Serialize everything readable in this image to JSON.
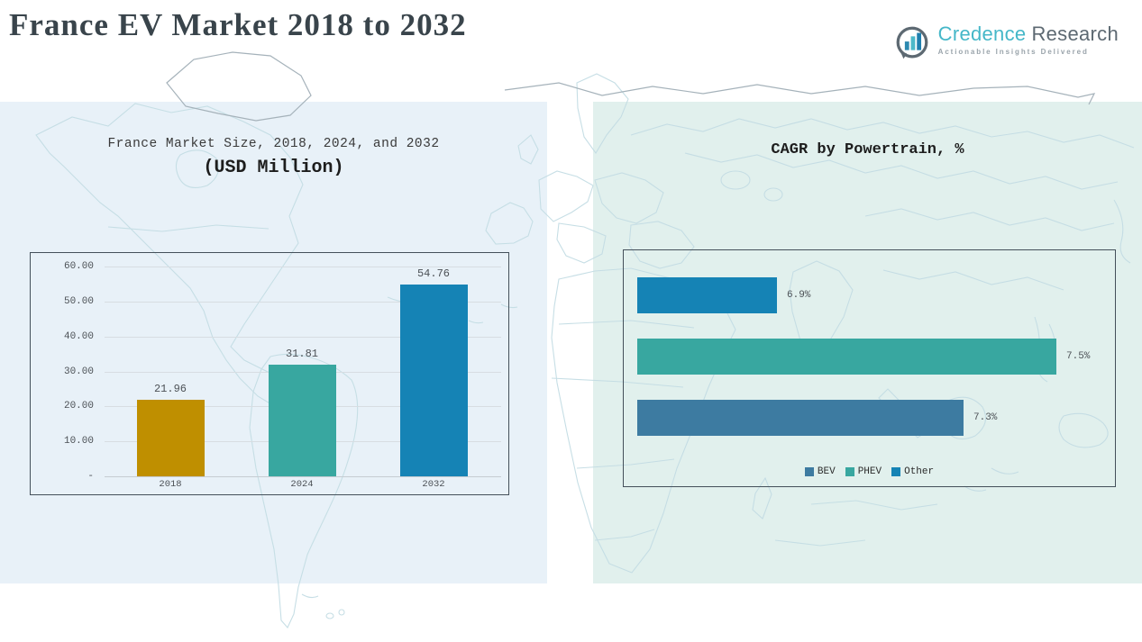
{
  "header": {
    "title": "France EV Market 2018 to 2032",
    "logo": {
      "brand_primary": "Credence",
      "brand_secondary": "Research",
      "tagline": "Actionable Insights Delivered",
      "icon": "bar-chart-bubble-icon",
      "brand_teal": "#45b7c8",
      "brand_slate": "#5d6972"
    }
  },
  "chart_data": [
    {
      "type": "bar",
      "title": "France Market Size, 2018, 2024, and 2032",
      "subtitle": "(USD Million)",
      "categories": [
        "2018",
        "2024",
        "2032"
      ],
      "values": [
        21.96,
        31.81,
        54.76
      ],
      "value_labels": [
        "21.96",
        "31.81",
        "54.76"
      ],
      "bar_colors": [
        "#bf8f00",
        "#38a7a0",
        "#1583b5"
      ],
      "xlabel": "",
      "ylabel": "",
      "ylim": [
        0,
        60
      ],
      "ytick_values": [
        60,
        50,
        40,
        30,
        20,
        10,
        0
      ],
      "ytick_labels": [
        "60.00",
        "50.00",
        "40.00",
        "30.00",
        "20.00",
        "10.00",
        "-"
      ],
      "grid": true,
      "legend_position": "none"
    },
    {
      "type": "bar",
      "orientation": "horizontal",
      "title": "CAGR by Powertrain, %",
      "bars": [
        {
          "name": "Other",
          "value": 6.9,
          "label": "6.9%",
          "color": "#1583b5"
        },
        {
          "name": "PHEV",
          "value": 7.5,
          "label": "7.5%",
          "color": "#38a7a0"
        },
        {
          "name": "BEV",
          "value": 7.3,
          "label": "7.3%",
          "color": "#3d7ba1"
        }
      ],
      "axis_min": 6.6,
      "axis_max": 7.63,
      "grid": false,
      "legend_position": "bottom",
      "legend": [
        {
          "label": "BEV",
          "color": "#3d7ba1"
        },
        {
          "label": "PHEV",
          "color": "#38a7a0"
        },
        {
          "label": "Other",
          "color": "#1583b5"
        }
      ]
    }
  ]
}
